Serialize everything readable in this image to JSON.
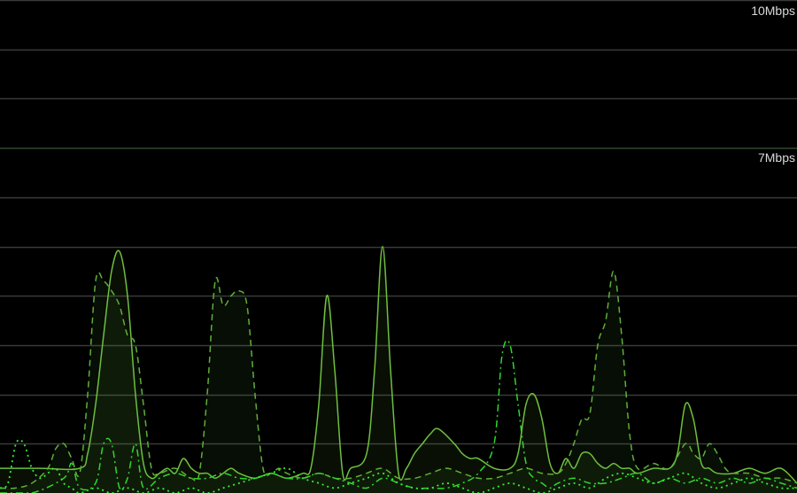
{
  "chart_data": {
    "type": "area",
    "title": "",
    "xlabel": "",
    "ylabel": "",
    "ylim": [
      0,
      10
    ],
    "xlim": [
      0,
      100
    ],
    "grid": true,
    "gridlines_y": [
      1,
      2,
      3,
      4,
      5,
      6,
      7,
      8,
      9,
      10
    ],
    "y_tick_labels": [
      {
        "value": 10,
        "label": "10Mbps"
      },
      {
        "value": 7,
        "label": "7Mbps"
      }
    ],
    "background": "#000000",
    "grid_color": "#3a3a3a",
    "accent_gridline_color": "#2f4a2f",
    "series": [
      {
        "style": "solid",
        "color": "#6fbf3f",
        "fill": true,
        "x": [
          0,
          5,
          10,
          11,
          12,
          13,
          14,
          15,
          16,
          17,
          18,
          19,
          20,
          21,
          22,
          23,
          24,
          25,
          26,
          27,
          28,
          29,
          30,
          32,
          34,
          36,
          38,
          39,
          40,
          41,
          42,
          43,
          44,
          46,
          47,
          48,
          49,
          50,
          51,
          52,
          53,
          54,
          55,
          57,
          58,
          59,
          60,
          62,
          64,
          65,
          66,
          67,
          68,
          69,
          70,
          71,
          72,
          73,
          74,
          75,
          76,
          77,
          78,
          79,
          80,
          82,
          84,
          85,
          86,
          87,
          88,
          89,
          90,
          92,
          94,
          96,
          98,
          100
        ],
        "values": [
          0.5,
          0.5,
          0.5,
          0.8,
          1.8,
          3.2,
          4.5,
          4.9,
          4.0,
          2.0,
          0.6,
          0.3,
          0.4,
          0.5,
          0.4,
          0.7,
          0.5,
          0.4,
          0.4,
          0.3,
          0.4,
          0.5,
          0.4,
          0.3,
          0.4,
          0.3,
          0.4,
          0.5,
          1.8,
          4.0,
          2.5,
          0.4,
          0.5,
          0.8,
          2.5,
          5.0,
          2.5,
          0.4,
          0.5,
          0.8,
          1.0,
          1.2,
          1.3,
          1.0,
          0.8,
          0.7,
          0.7,
          0.5,
          0.5,
          0.8,
          1.8,
          2.0,
          1.5,
          0.6,
          0.4,
          0.7,
          0.5,
          0.8,
          0.8,
          0.6,
          0.5,
          0.6,
          0.5,
          0.5,
          0.4,
          0.5,
          0.5,
          0.8,
          1.8,
          1.5,
          0.6,
          0.5,
          0.4,
          0.4,
          0.5,
          0.4,
          0.5,
          0.2
        ]
      },
      {
        "style": "dashed",
        "color": "#5fae3a",
        "fill": true,
        "x": [
          0,
          2,
          4,
          6,
          7,
          8,
          9,
          10,
          11,
          12,
          13,
          14,
          15,
          16,
          17,
          18,
          19,
          20,
          22,
          24,
          25,
          26,
          27,
          28,
          29,
          30,
          31,
          32,
          33,
          34,
          35,
          36,
          38,
          40,
          42,
          44,
          46,
          48,
          50,
          52,
          54,
          56,
          58,
          60,
          62,
          64,
          66,
          68,
          70,
          71,
          72,
          73,
          74,
          75,
          76,
          77,
          78,
          79,
          80,
          82,
          84,
          86,
          87,
          88,
          89,
          90,
          91,
          92,
          94,
          96,
          98,
          100
        ],
        "values": [
          0.1,
          0.1,
          0.2,
          0.5,
          0.9,
          1.0,
          0.7,
          0.4,
          2.0,
          4.3,
          4.3,
          4.1,
          3.8,
          3.2,
          3.0,
          1.8,
          0.5,
          0.4,
          0.5,
          0.3,
          0.4,
          2.0,
          4.3,
          3.8,
          4.0,
          4.1,
          3.8,
          2.0,
          0.5,
          0.4,
          0.5,
          0.4,
          0.3,
          0.4,
          0.3,
          0.3,
          0.4,
          0.5,
          0.3,
          0.3,
          0.4,
          0.5,
          0.4,
          0.3,
          0.3,
          0.4,
          0.5,
          0.4,
          0.4,
          0.6,
          1.0,
          1.5,
          1.6,
          3.0,
          3.5,
          4.5,
          3.2,
          1.2,
          0.5,
          0.6,
          0.5,
          1.0,
          0.8,
          0.7,
          1.0,
          0.8,
          0.5,
          0.4,
          0.4,
          0.3,
          0.3,
          0.2
        ]
      },
      {
        "style": "dashdot",
        "color": "#2fd62f",
        "fill": false,
        "x": [
          0,
          4,
          8,
          9,
          10,
          12,
          13,
          14,
          15,
          16,
          17,
          18,
          20,
          22,
          24,
          26,
          28,
          30,
          32,
          34,
          36,
          38,
          40,
          42,
          44,
          46,
          48,
          50,
          52,
          54,
          56,
          58,
          60,
          62,
          63,
          64,
          65,
          66,
          67,
          68,
          69,
          70,
          72,
          74,
          76,
          78,
          80,
          82,
          84,
          86,
          88,
          90,
          92,
          94,
          96,
          98,
          100
        ],
        "values": [
          0.0,
          0.0,
          0.3,
          0.6,
          0.1,
          0.2,
          1.0,
          1.0,
          0.1,
          0.3,
          1.0,
          0.1,
          0.3,
          0.4,
          0.3,
          0.3,
          0.4,
          0.3,
          0.3,
          0.4,
          0.3,
          0.3,
          0.4,
          0.3,
          0.2,
          0.1,
          0.3,
          0.2,
          0.1,
          0.1,
          0.1,
          0.2,
          0.4,
          1.0,
          2.8,
          3.0,
          1.8,
          0.6,
          0.3,
          0.2,
          0.1,
          0.2,
          0.3,
          0.2,
          0.2,
          0.3,
          0.4,
          0.2,
          0.3,
          0.2,
          0.3,
          0.2,
          0.3,
          0.2,
          0.3,
          0.2,
          0.1
        ]
      },
      {
        "style": "dotted",
        "color": "#33ee33",
        "fill": false,
        "x": [
          0,
          1,
          2,
          3,
          4,
          5,
          6,
          7,
          8,
          9,
          10,
          12,
          14,
          16,
          18,
          20,
          22,
          24,
          26,
          28,
          30,
          32,
          34,
          36,
          38,
          40,
          42,
          44,
          46,
          48,
          50,
          52,
          54,
          56,
          58,
          60,
          62,
          64,
          66,
          68,
          70,
          72,
          74,
          76,
          78,
          80,
          82,
          84,
          86,
          88,
          90,
          92,
          94,
          96,
          98,
          100
        ],
        "values": [
          0.1,
          0.2,
          1.0,
          1.0,
          0.5,
          0.3,
          0.4,
          0.5,
          0.2,
          0.1,
          0.0,
          0.1,
          0.0,
          0.1,
          0.0,
          0.1,
          0.0,
          0.1,
          0.0,
          0.1,
          0.2,
          0.3,
          0.4,
          0.5,
          0.3,
          0.2,
          0.1,
          0.2,
          0.3,
          0.4,
          0.2,
          0.1,
          0.1,
          0.2,
          0.1,
          0.0,
          0.1,
          0.2,
          0.1,
          0.0,
          0.1,
          0.2,
          0.1,
          0.3,
          0.4,
          0.3,
          0.2,
          0.3,
          0.4,
          0.2,
          0.1,
          0.2,
          0.3,
          0.2,
          0.1,
          0.1
        ]
      }
    ]
  }
}
